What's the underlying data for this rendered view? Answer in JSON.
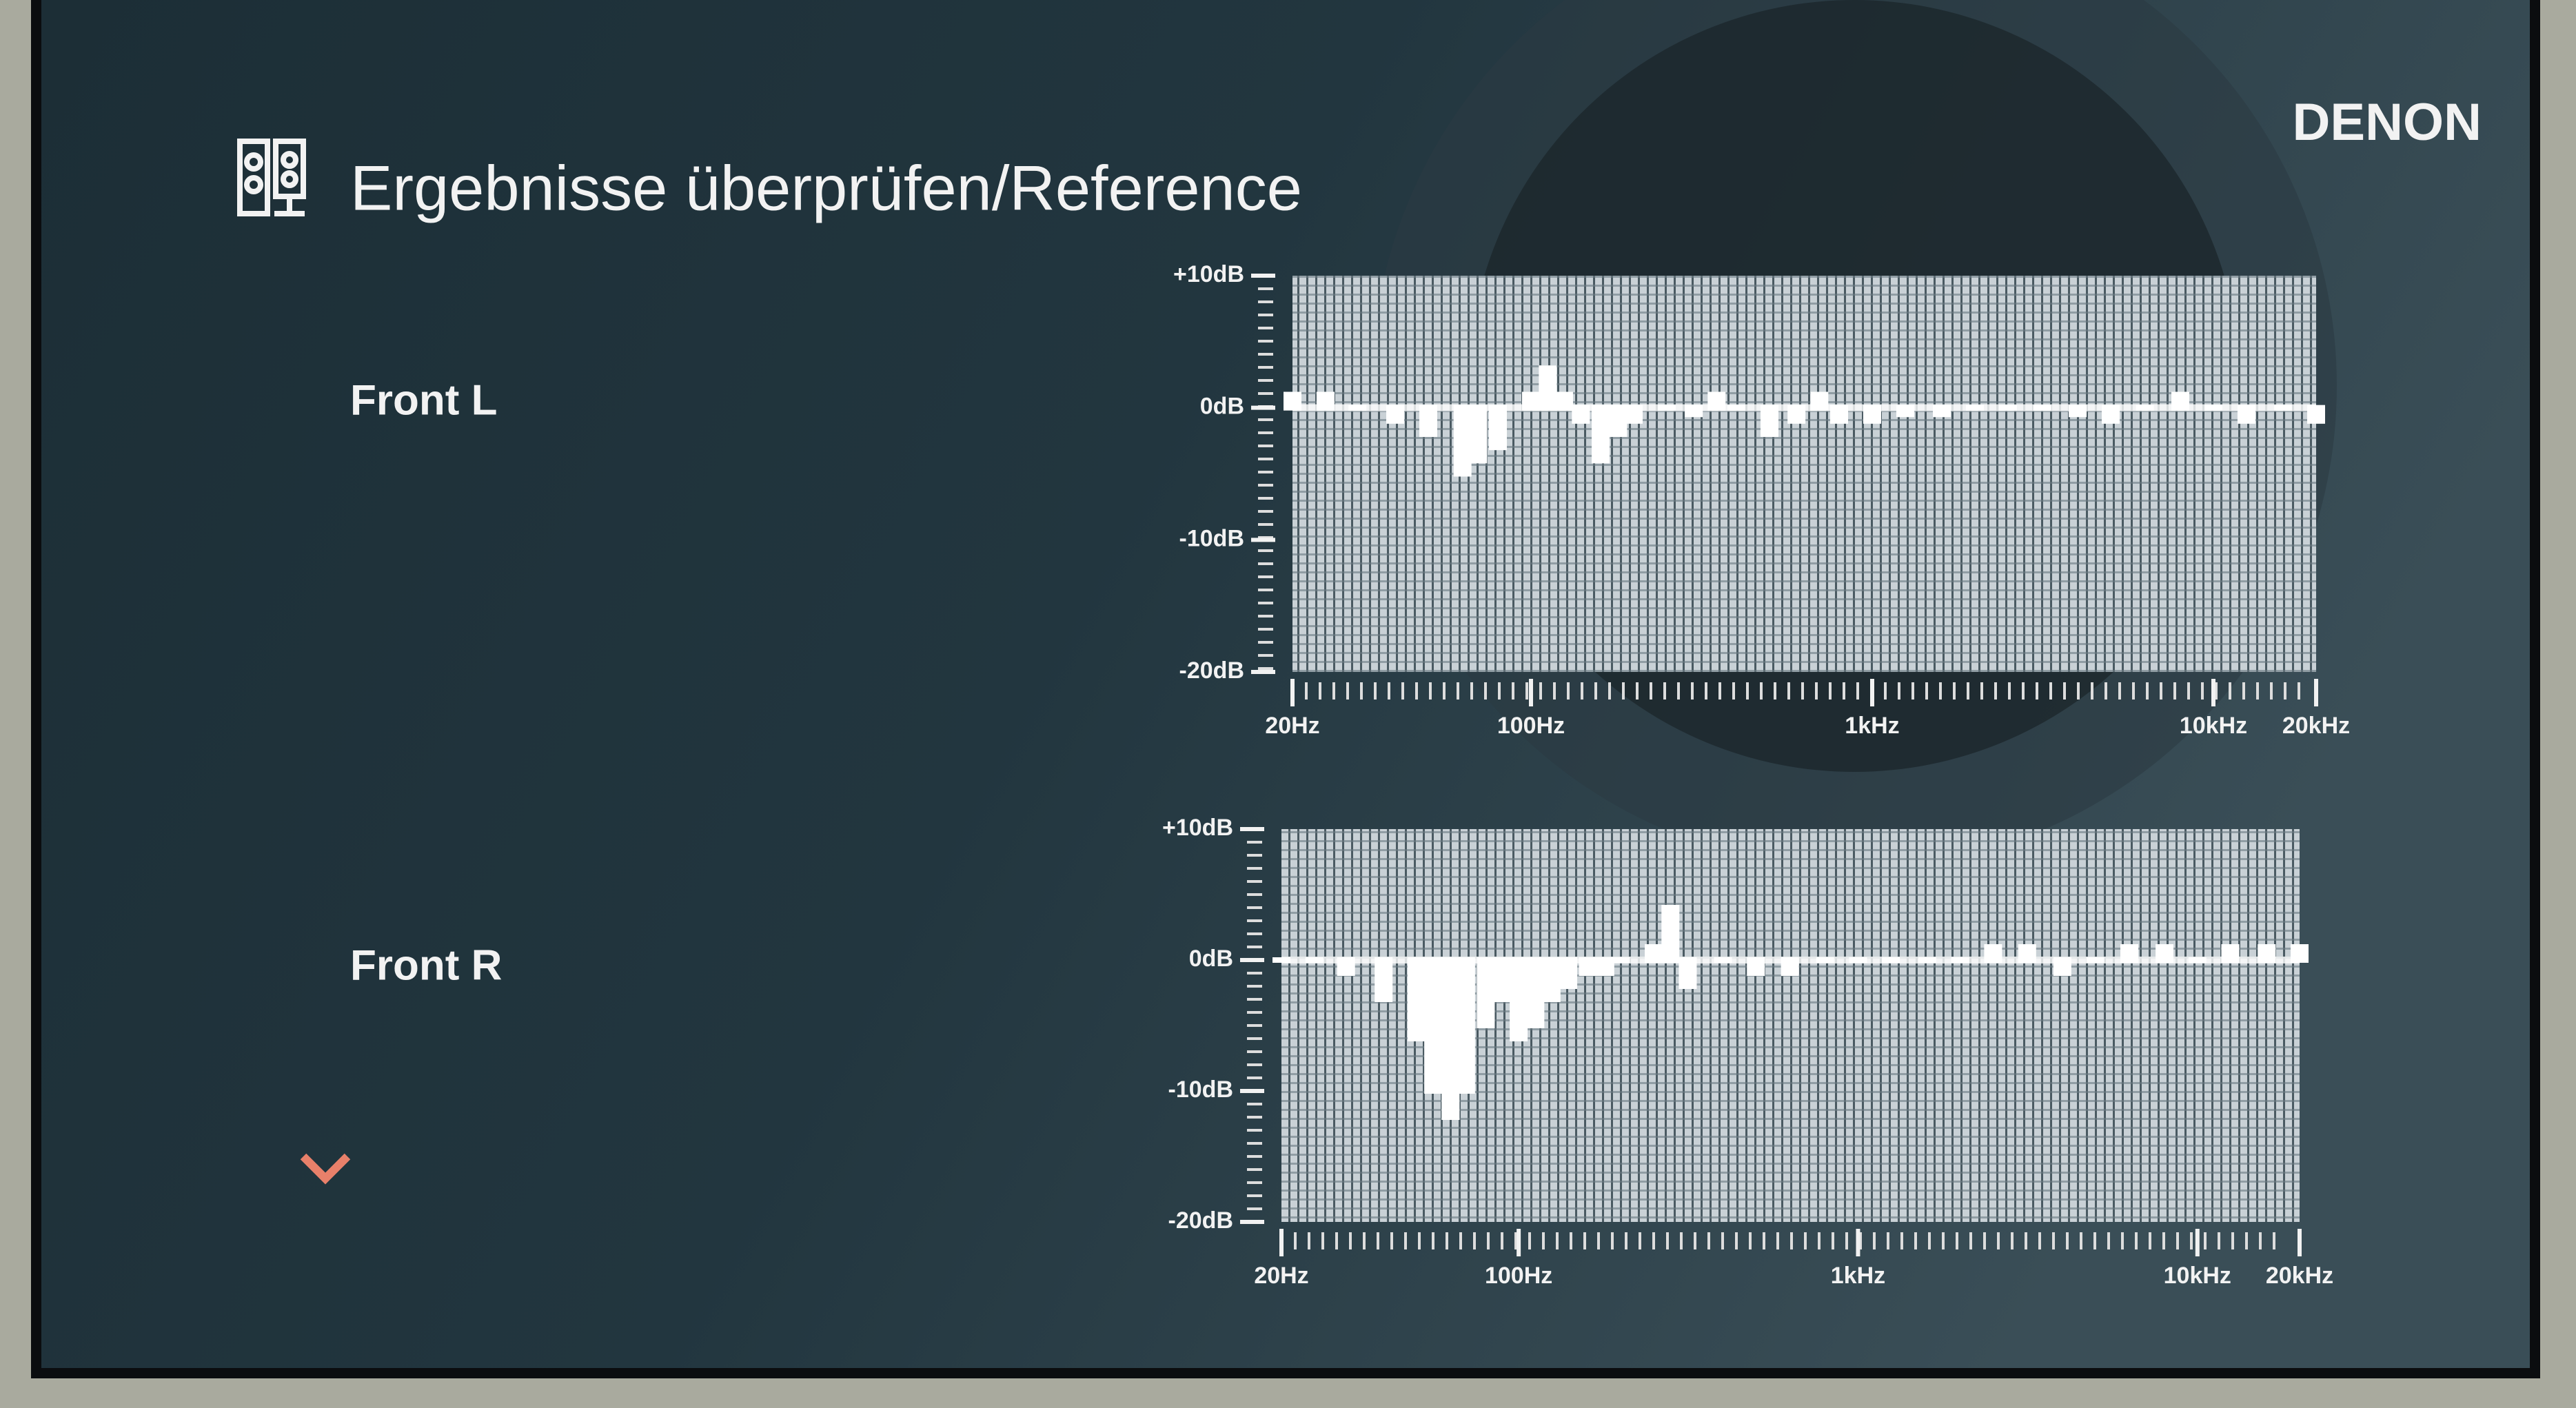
{
  "header": {
    "title": "Ergebnisse überprüfen/Reference",
    "brand": "DENON"
  },
  "chart_data": [
    {
      "type": "bar",
      "title": "Front L",
      "xscale": "log",
      "grid": true,
      "color": "#ffffff",
      "x": [
        20,
        25,
        31,
        40,
        50,
        63,
        70,
        80,
        100,
        112,
        125,
        140,
        160,
        180,
        200,
        250,
        300,
        350,
        400,
        500,
        600,
        700,
        800,
        1000,
        1250,
        1600,
        2000,
        2500,
        3150,
        4000,
        5000,
        6300,
        8000,
        10000,
        12500,
        16000,
        20000
      ],
      "values": [
        1,
        1,
        0,
        -1,
        -2,
        -5,
        -4,
        -3,
        1,
        3,
        1,
        -1,
        -4,
        -2,
        -1,
        0,
        -0.5,
        1,
        0,
        -2,
        -1,
        1,
        -1,
        -1,
        -0.5,
        -0.5,
        0,
        0,
        0,
        -0.5,
        -1,
        0,
        1,
        0,
        -1,
        0,
        -1
      ],
      "xlim": [
        20,
        20000
      ],
      "xticks": [
        {
          "value": 20,
          "label": "20Hz"
        },
        {
          "value": 100,
          "label": "100Hz"
        },
        {
          "value": 1000,
          "label": "1kHz"
        },
        {
          "value": 10000,
          "label": "10kHz"
        },
        {
          "value": 20000,
          "label": "20kHz"
        }
      ],
      "ylim": [
        -20,
        10
      ],
      "yticks": [
        {
          "value": 10,
          "label": "+10dB"
        },
        {
          "value": 0,
          "label": "0dB"
        },
        {
          "value": -10,
          "label": "-10dB"
        },
        {
          "value": -20,
          "label": "-20dB"
        }
      ]
    },
    {
      "type": "bar",
      "title": "Front R",
      "xscale": "log",
      "grid": true,
      "color": "#ffffff",
      "x": [
        20,
        25,
        31,
        40,
        50,
        56,
        63,
        70,
        80,
        90,
        100,
        112,
        125,
        140,
        160,
        180,
        200,
        250,
        280,
        315,
        400,
        500,
        630,
        800,
        1000,
        1250,
        1600,
        2000,
        2500,
        3150,
        4000,
        5000,
        6300,
        8000,
        10000,
        12500,
        16000,
        20000
      ],
      "values": [
        0,
        0,
        -1,
        -3,
        -6,
        -10,
        -12,
        -10,
        -5,
        -3,
        -6,
        -5,
        -3,
        -2,
        -1,
        -1,
        0,
        1,
        4,
        -2,
        0,
        -1,
        -1,
        0,
        0,
        0,
        0,
        0,
        1,
        1,
        -1,
        0,
        1,
        1,
        0,
        1,
        1,
        1
      ],
      "xlim": [
        20,
        20000
      ],
      "xticks": [
        {
          "value": 20,
          "label": "20Hz"
        },
        {
          "value": 100,
          "label": "100Hz"
        },
        {
          "value": 1000,
          "label": "1kHz"
        },
        {
          "value": 10000,
          "label": "10kHz"
        },
        {
          "value": 20000,
          "label": "20kHz"
        }
      ],
      "ylim": [
        -20,
        10
      ],
      "yticks": [
        {
          "value": 10,
          "label": "+10dB"
        },
        {
          "value": 0,
          "label": "0dB"
        },
        {
          "value": -10,
          "label": "-10dB"
        },
        {
          "value": -20,
          "label": "-20dB"
        }
      ]
    }
  ]
}
